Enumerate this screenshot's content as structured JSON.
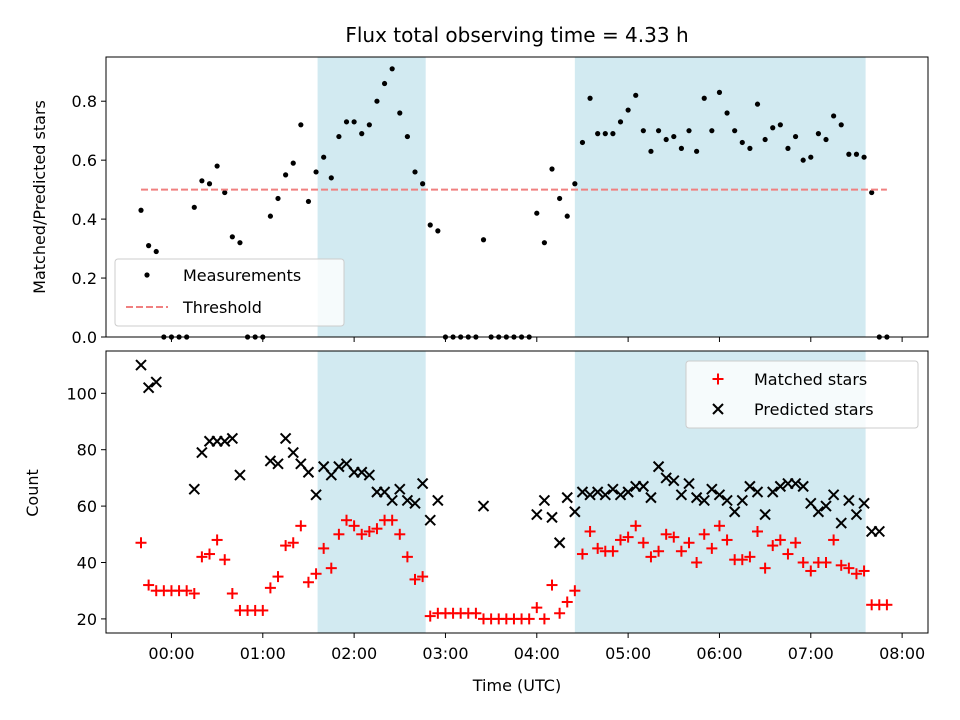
{
  "chart_data": [
    {
      "type": "scatter",
      "title": "Flux total observing time = 4.33 h",
      "ylabel": "Matched/Predicted stars",
      "xlim": [
        "-00:43",
        "08:17"
      ],
      "ylim": [
        0,
        0.95
      ],
      "yticks": [
        0.0,
        0.2,
        0.4,
        0.6,
        0.8
      ],
      "ytick_labels": [
        "0.0",
        "0.2",
        "0.4",
        "0.6",
        "0.8"
      ],
      "grid": false,
      "legend_position": "lower-left",
      "shaded_intervals": [
        [
          "01:36",
          "02:47"
        ],
        [
          "04:25",
          "07:36"
        ]
      ],
      "shade_color": "#add8e6",
      "series": [
        {
          "name": "Measurements",
          "marker": "dot",
          "color": "#000000",
          "x": [
            "-00:20",
            "-00:15",
            "-00:10",
            "-00:05",
            "00:00",
            "00:05",
            "00:10",
            "00:15",
            "00:20",
            "00:25",
            "00:30",
            "00:35",
            "00:40",
            "00:45",
            "00:50",
            "00:55",
            "01:00",
            "01:05",
            "01:10",
            "01:15",
            "01:20",
            "01:25",
            "01:30",
            "01:35",
            "01:40",
            "01:45",
            "01:50",
            "01:55",
            "02:00",
            "02:05",
            "02:10",
            "02:15",
            "02:20",
            "02:25",
            "02:30",
            "02:35",
            "02:40",
            "02:45",
            "02:50",
            "02:55",
            "03:00",
            "03:05",
            "03:10",
            "03:15",
            "03:20",
            "03:25",
            "03:30",
            "03:35",
            "03:40",
            "03:45",
            "03:50",
            "03:55",
            "04:00",
            "04:05",
            "04:10",
            "04:15",
            "04:20",
            "04:25",
            "04:30",
            "04:35",
            "04:40",
            "04:45",
            "04:50",
            "04:55",
            "05:00",
            "05:05",
            "05:10",
            "05:15",
            "05:20",
            "05:25",
            "05:30",
            "05:35",
            "05:40",
            "05:45",
            "05:50",
            "05:55",
            "06:00",
            "06:05",
            "06:10",
            "06:15",
            "06:20",
            "06:25",
            "06:30",
            "06:35",
            "06:40",
            "06:45",
            "06:50",
            "06:55",
            "07:00",
            "07:05",
            "07:10",
            "07:15",
            "07:20",
            "07:25",
            "07:30",
            "07:35",
            "07:40",
            "07:45",
            "07:50"
          ],
          "y": [
            0.43,
            0.31,
            0.29,
            0.0,
            0.0,
            0.0,
            0.0,
            0.44,
            0.53,
            0.52,
            0.58,
            0.49,
            0.34,
            0.32,
            0.0,
            0.0,
            0.0,
            0.41,
            0.47,
            0.55,
            0.59,
            0.72,
            0.46,
            0.56,
            0.61,
            0.54,
            0.68,
            0.73,
            0.73,
            0.69,
            0.72,
            0.8,
            0.86,
            0.91,
            0.76,
            0.68,
            0.56,
            0.52,
            0.38,
            0.36,
            0.0,
            0.0,
            0.0,
            0.0,
            0.0,
            0.33,
            0.0,
            0.0,
            0.0,
            0.0,
            0.0,
            0.0,
            0.42,
            0.32,
            0.57,
            0.47,
            0.41,
            0.52,
            0.66,
            0.81,
            0.69,
            0.69,
            0.69,
            0.73,
            0.77,
            0.82,
            0.7,
            0.63,
            0.7,
            0.67,
            0.68,
            0.64,
            0.7,
            0.63,
            0.81,
            0.7,
            0.83,
            0.76,
            0.7,
            0.66,
            0.64,
            0.79,
            0.67,
            0.71,
            0.72,
            0.64,
            0.68,
            0.6,
            0.61,
            0.69,
            0.67,
            0.75,
            0.72,
            0.62,
            0.62,
            0.61,
            0.49,
            0.0,
            0.0
          ]
        },
        {
          "name": "Threshold",
          "style": "dashed",
          "color": "#f08080",
          "x": [
            "-00:20",
            "07:50"
          ],
          "y": [
            0.5,
            0.5
          ]
        }
      ]
    },
    {
      "type": "scatter",
      "xlabel": "Time (UTC)",
      "ylabel": "Count",
      "xlim": [
        "-00:43",
        "08:17"
      ],
      "xticks": [
        "00:00",
        "01:00",
        "02:00",
        "03:00",
        "04:00",
        "05:00",
        "06:00",
        "07:00",
        "08:00"
      ],
      "ylim": [
        15,
        115
      ],
      "yticks": [
        20,
        40,
        60,
        80,
        100
      ],
      "ytick_labels": [
        "20",
        "40",
        "60",
        "80",
        "100"
      ],
      "grid": false,
      "legend_position": "upper-right",
      "shaded_intervals": [
        [
          "01:36",
          "02:47"
        ],
        [
          "04:25",
          "07:36"
        ]
      ],
      "shade_color": "#add8e6",
      "series": [
        {
          "name": "Matched stars",
          "marker": "plus",
          "color": "#ff0000",
          "x": [
            "-00:20",
            "-00:15",
            "-00:10",
            "-00:05",
            "00:00",
            "00:05",
            "00:10",
            "00:15",
            "00:20",
            "00:25",
            "00:30",
            "00:35",
            "00:40",
            "00:45",
            "00:50",
            "00:55",
            "01:00",
            "01:05",
            "01:10",
            "01:15",
            "01:20",
            "01:25",
            "01:30",
            "01:35",
            "01:40",
            "01:45",
            "01:50",
            "01:55",
            "02:00",
            "02:05",
            "02:10",
            "02:15",
            "02:20",
            "02:25",
            "02:30",
            "02:35",
            "02:40",
            "02:45",
            "02:50",
            "02:55",
            "03:00",
            "03:05",
            "03:10",
            "03:15",
            "03:20",
            "03:25",
            "03:30",
            "03:35",
            "03:40",
            "03:45",
            "03:50",
            "03:55",
            "04:00",
            "04:05",
            "04:10",
            "04:15",
            "04:20",
            "04:25",
            "04:30",
            "04:35",
            "04:40",
            "04:45",
            "04:50",
            "04:55",
            "05:00",
            "05:05",
            "05:10",
            "05:15",
            "05:20",
            "05:25",
            "05:30",
            "05:35",
            "05:40",
            "05:45",
            "05:50",
            "05:55",
            "06:00",
            "06:05",
            "06:10",
            "06:15",
            "06:20",
            "06:25",
            "06:30",
            "06:35",
            "06:40",
            "06:45",
            "06:50",
            "06:55",
            "07:00",
            "07:05",
            "07:10",
            "07:15",
            "07:20",
            "07:25",
            "07:30",
            "07:35",
            "07:40",
            "07:45",
            "07:50"
          ],
          "y": [
            47,
            32,
            30,
            30,
            30,
            30,
            30,
            29,
            42,
            43,
            48,
            41,
            29,
            23,
            23,
            23,
            23,
            31,
            35,
            46,
            47,
            53,
            33,
            36,
            45,
            38,
            50,
            55,
            53,
            50,
            51,
            52,
            55,
            55,
            50,
            42,
            34,
            35,
            21,
            22,
            22,
            22,
            22,
            22,
            22,
            20,
            20,
            20,
            20,
            20,
            20,
            20,
            24,
            20,
            32,
            22,
            26,
            30,
            43,
            51,
            45,
            44,
            44,
            48,
            49,
            53,
            47,
            42,
            44,
            50,
            49,
            44,
            47,
            40,
            50,
            45,
            53,
            48,
            41,
            41,
            42,
            51,
            38,
            46,
            48,
            43,
            47,
            40,
            37,
            40,
            40,
            48,
            39,
            38,
            36,
            37,
            25,
            25,
            25
          ]
        },
        {
          "name": "Predicted stars",
          "marker": "x",
          "color": "#000000",
          "x": [
            "-00:20",
            "-00:15",
            "-00:10",
            "00:15",
            "00:20",
            "00:25",
            "00:30",
            "00:35",
            "00:40",
            "00:45",
            "01:05",
            "01:10",
            "01:15",
            "01:20",
            "01:25",
            "01:30",
            "01:35",
            "01:40",
            "01:45",
            "01:50",
            "01:55",
            "02:00",
            "02:05",
            "02:10",
            "02:15",
            "02:20",
            "02:25",
            "02:30",
            "02:35",
            "02:40",
            "02:45",
            "02:50",
            "02:55",
            "03:25",
            "04:00",
            "04:05",
            "04:10",
            "04:15",
            "04:20",
            "04:25",
            "04:30",
            "04:35",
            "04:40",
            "04:45",
            "04:50",
            "04:55",
            "05:00",
            "05:05",
            "05:10",
            "05:15",
            "05:20",
            "05:25",
            "05:30",
            "05:35",
            "05:40",
            "05:45",
            "05:50",
            "05:55",
            "06:00",
            "06:05",
            "06:10",
            "06:15",
            "06:20",
            "06:25",
            "06:30",
            "06:35",
            "06:40",
            "06:45",
            "06:50",
            "06:55",
            "07:00",
            "07:05",
            "07:10",
            "07:15",
            "07:20",
            "07:25",
            "07:30",
            "07:35",
            "07:40",
            "07:45"
          ],
          "y": [
            110,
            102,
            104,
            66,
            79,
            83,
            83,
            83,
            84,
            71,
            76,
            75,
            84,
            79,
            75,
            72,
            64,
            74,
            71,
            74,
            75,
            72,
            72,
            71,
            65,
            65,
            62,
            66,
            62,
            61,
            68,
            55,
            62,
            60,
            57,
            62,
            56,
            47,
            63,
            58,
            65,
            64,
            65,
            64,
            66,
            64,
            65,
            67,
            67,
            63,
            74,
            70,
            69,
            64,
            68,
            63,
            62,
            66,
            64,
            62,
            58,
            62,
            67,
            65,
            57,
            65,
            67,
            68,
            68,
            67,
            61,
            58,
            60,
            64,
            54,
            62,
            57,
            61,
            51,
            51
          ]
        }
      ]
    }
  ]
}
